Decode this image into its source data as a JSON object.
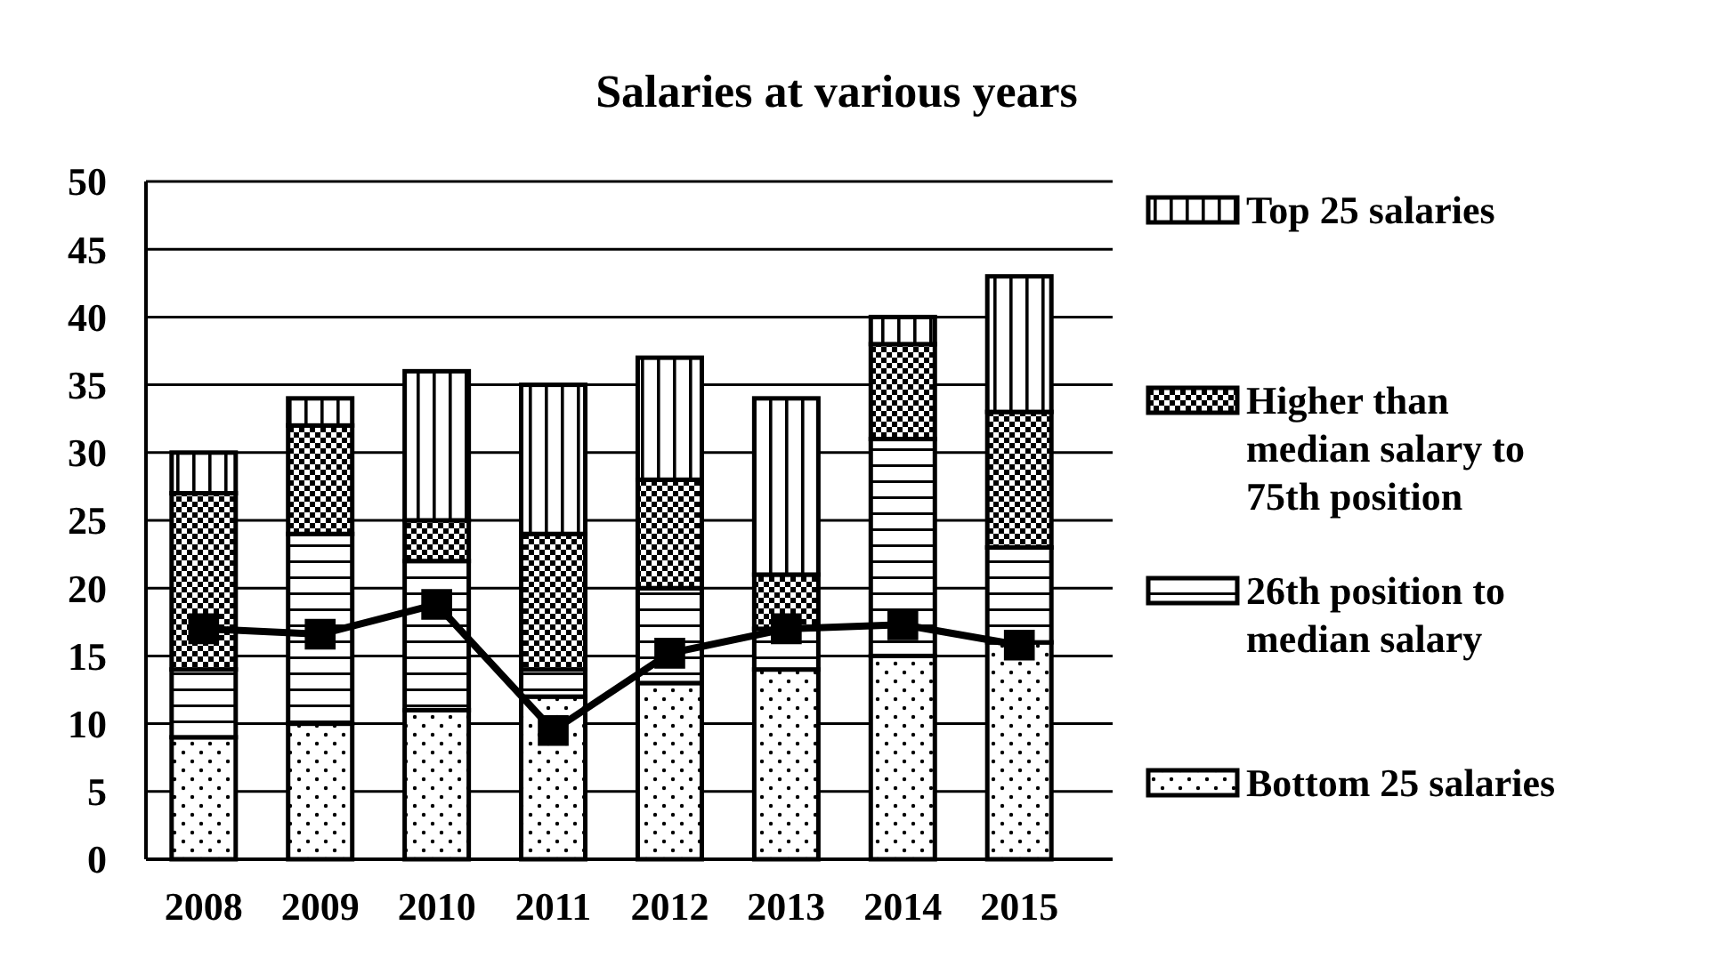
{
  "chart_data": {
    "type": "bar",
    "title": "Salaries at various years",
    "stacked": true,
    "categories": [
      "2008",
      "2009",
      "2010",
      "2011",
      "2012",
      "2013",
      "2014",
      "2015"
    ],
    "series": [
      {
        "name": "Bottom 25 salaries",
        "color": "#000000",
        "values": [
          9,
          10,
          11,
          12,
          13,
          14,
          15,
          16
        ]
      },
      {
        "name": "26th position to median salary",
        "color": "#000000",
        "values": [
          5,
          14,
          11,
          2,
          7,
          3,
          16,
          7
        ]
      },
      {
        "name": "Higher than median salary to 75th position",
        "color": "#000000",
        "values": [
          13,
          8,
          3,
          10,
          8,
          4,
          7,
          10
        ]
      },
      {
        "name": "Top 25 salaries",
        "color": "#000000",
        "values": [
          3,
          2,
          11,
          11,
          9,
          13,
          2,
          10
        ]
      },
      {
        "type": "line",
        "color": "#000000",
        "marker": "square",
        "values": [
          17,
          16.6,
          18.8,
          9.5,
          15.2,
          17,
          17.3,
          15.8
        ]
      }
    ],
    "ylim": [
      0,
      50
    ],
    "yticks": [
      0,
      5,
      10,
      15,
      20,
      25,
      30,
      35,
      40,
      45,
      50
    ],
    "grid": "y",
    "legend": "right"
  }
}
